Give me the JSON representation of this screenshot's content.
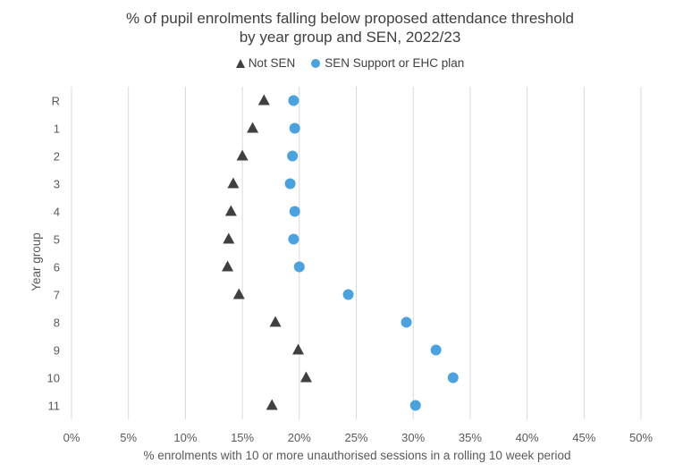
{
  "chart_data": {
    "type": "scatter",
    "title_line1": "% of pupil enrolments falling below proposed attendance threshold",
    "title_line2": "by year group and SEN, 2022/23",
    "xlabel": "% enrolments with 10 or more unauthorised sessions in a rolling 10 week period",
    "ylabel": "Year group",
    "xlim": [
      0,
      50
    ],
    "xticks": [
      0,
      5,
      10,
      15,
      20,
      25,
      30,
      35,
      40,
      45,
      50
    ],
    "xtick_labels": [
      "0%",
      "5%",
      "10%",
      "15%",
      "20%",
      "25%",
      "30%",
      "35%",
      "40%",
      "45%",
      "50%"
    ],
    "categories": [
      "R",
      "1",
      "2",
      "3",
      "4",
      "5",
      "6",
      "7",
      "8",
      "9",
      "10",
      "11"
    ],
    "grid": "vertical",
    "legend_position": "top",
    "series": [
      {
        "name": "Not SEN",
        "marker": "triangle",
        "color": "#404040",
        "values": [
          16.9,
          15.9,
          15.0,
          14.2,
          14.0,
          13.8,
          13.7,
          14.7,
          17.9,
          19.9,
          20.6,
          17.6
        ]
      },
      {
        "name": "SEN Support or EHC plan",
        "marker": "circle",
        "color": "#4aa3df",
        "values": [
          19.5,
          19.6,
          19.4,
          19.2,
          19.6,
          19.5,
          20.0,
          24.3,
          29.4,
          32.0,
          33.5,
          30.2
        ]
      }
    ]
  }
}
